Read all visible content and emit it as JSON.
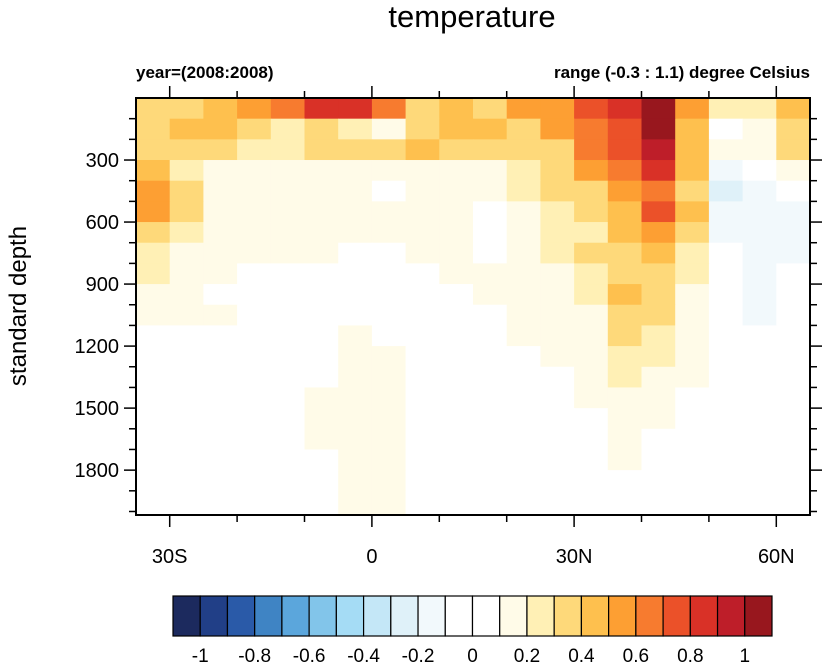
{
  "chart_data": {
    "type": "heatmap",
    "title": "temperature",
    "left_string": "year=(2008:2008)",
    "right_string": "range (-0.3 : 1.1) degree Celsius",
    "ylabel": "standard depth",
    "xlabel": "",
    "xlim": [
      -35,
      65
    ],
    "ylim": [
      0,
      2017
    ],
    "y_reversed": true,
    "x_ticks": [
      {
        "value": -30,
        "label": "30S"
      },
      {
        "value": 0,
        "label": "0"
      },
      {
        "value": 30,
        "label": "30N"
      },
      {
        "value": 60,
        "label": "60N"
      }
    ],
    "y_ticks": [
      {
        "value": 300,
        "label": "300"
      },
      {
        "value": 600,
        "label": "600"
      },
      {
        "value": 900,
        "label": "900"
      },
      {
        "value": 1200,
        "label": "1200"
      },
      {
        "value": 1500,
        "label": "1500"
      },
      {
        "value": 1800,
        "label": "1800"
      }
    ],
    "x_cell_edges": [
      -35,
      -30,
      -25,
      -20,
      -15,
      -10,
      -5,
      0,
      5,
      10,
      15,
      20,
      25,
      30,
      35,
      40,
      45,
      50,
      55,
      60,
      65
    ],
    "depth_cell_edges": [
      0,
      100,
      200,
      300,
      400,
      500,
      600,
      700,
      800,
      900,
      1000,
      1100,
      1200,
      1300,
      1400,
      1500,
      1600,
      1700,
      1800,
      1900,
      2017
    ],
    "values": [
      [
        0.3,
        0.3,
        0.4,
        0.5,
        0.6,
        0.8,
        0.8,
        0.6,
        0.3,
        0.4,
        0.3,
        0.5,
        0.5,
        0.7,
        0.8,
        1.0,
        0.5,
        0.2,
        0.2,
        0.4
      ],
      [
        0.3,
        0.4,
        0.4,
        0.3,
        0.2,
        0.3,
        0.2,
        0.1,
        0.3,
        0.4,
        0.4,
        0.3,
        0.5,
        0.6,
        0.7,
        1.0,
        0.4,
        0.0,
        0.1,
        0.3
      ],
      [
        0.3,
        0.3,
        0.3,
        0.2,
        0.2,
        0.3,
        0.3,
        0.3,
        0.4,
        0.3,
        0.3,
        0.3,
        0.3,
        0.6,
        0.7,
        0.9,
        0.4,
        0.1,
        0.1,
        0.3
      ],
      [
        0.4,
        0.2,
        0.1,
        0.1,
        0.1,
        0.1,
        0.1,
        0.1,
        0.1,
        0.1,
        0.1,
        0.2,
        0.3,
        0.5,
        0.6,
        0.8,
        0.4,
        -0.1,
        0.0,
        0.1
      ],
      [
        0.5,
        0.3,
        0.1,
        0.1,
        0.1,
        0.1,
        0.1,
        0.0,
        0.1,
        0.1,
        0.1,
        0.2,
        0.3,
        0.3,
        0.5,
        0.6,
        0.3,
        -0.2,
        -0.1,
        0.0
      ],
      [
        0.5,
        0.3,
        0.1,
        0.1,
        0.1,
        0.1,
        0.1,
        0.1,
        0.1,
        0.1,
        0.0,
        0.1,
        0.2,
        0.3,
        0.4,
        0.7,
        0.4,
        -0.1,
        -0.1,
        -0.1
      ],
      [
        0.3,
        0.2,
        0.1,
        0.1,
        0.1,
        0.1,
        0.1,
        0.1,
        0.1,
        0.1,
        0.0,
        0.1,
        0.2,
        0.2,
        0.4,
        0.5,
        0.3,
        -0.1,
        -0.1,
        -0.1
      ],
      [
        0.2,
        0.1,
        0.1,
        0.1,
        0.1,
        0.1,
        0.0,
        0.0,
        0.1,
        0.1,
        0.0,
        0.1,
        0.2,
        0.3,
        0.3,
        0.4,
        0.2,
        0.0,
        -0.1,
        -0.1
      ],
      [
        0.2,
        0.1,
        0.1,
        0.0,
        0.0,
        0.0,
        0.0,
        0.0,
        0.0,
        0.1,
        0.1,
        0.1,
        0.1,
        0.2,
        0.3,
        0.3,
        0.2,
        0.0,
        -0.1,
        0.0
      ],
      [
        0.1,
        0.1,
        0.0,
        0.0,
        0.0,
        0.0,
        0.0,
        0.0,
        0.0,
        0.0,
        0.1,
        0.1,
        0.1,
        0.2,
        0.4,
        0.3,
        0.1,
        0.0,
        -0.1,
        0.0
      ],
      [
        0.1,
        0.1,
        0.1,
        0.0,
        0.0,
        0.0,
        0.0,
        0.0,
        0.0,
        0.0,
        0.0,
        0.1,
        0.1,
        0.1,
        0.3,
        0.3,
        0.1,
        0.0,
        -0.1,
        0.0
      ],
      [
        0.0,
        0.0,
        0.0,
        0.0,
        0.0,
        0.0,
        0.1,
        0.0,
        0.0,
        0.0,
        0.0,
        0.1,
        0.1,
        0.1,
        0.3,
        0.2,
        0.1,
        0.0,
        0.0,
        0.0
      ],
      [
        0.0,
        0.0,
        0.0,
        0.0,
        0.0,
        0.0,
        0.1,
        0.1,
        0.0,
        0.0,
        0.0,
        0.0,
        0.1,
        0.1,
        0.2,
        0.2,
        0.1,
        0.0,
        0.0,
        0.0
      ],
      [
        0.0,
        0.0,
        0.0,
        0.0,
        0.0,
        0.0,
        0.1,
        0.1,
        0.0,
        0.0,
        0.0,
        0.0,
        0.0,
        0.1,
        0.2,
        0.1,
        0.1,
        0.0,
        0.0,
        0.0
      ],
      [
        0.0,
        0.0,
        0.0,
        0.0,
        0.0,
        0.1,
        0.1,
        0.1,
        0.0,
        0.0,
        0.0,
        0.0,
        0.0,
        0.1,
        0.1,
        0.1,
        0.0,
        0.0,
        0.0,
        0.0
      ],
      [
        0.0,
        0.0,
        0.0,
        0.0,
        0.0,
        0.1,
        0.1,
        0.1,
        0.0,
        0.0,
        0.0,
        0.0,
        0.0,
        0.0,
        0.1,
        0.1,
        0.0,
        0.0,
        0.0,
        0.0
      ],
      [
        0.0,
        0.0,
        0.0,
        0.0,
        0.0,
        0.1,
        0.1,
        0.1,
        0.0,
        0.0,
        0.0,
        0.0,
        0.0,
        0.0,
        0.1,
        0.0,
        0.0,
        0.0,
        0.0,
        0.0
      ],
      [
        0.0,
        0.0,
        0.0,
        0.0,
        0.0,
        0.0,
        0.1,
        0.1,
        0.0,
        0.0,
        0.0,
        0.0,
        0.0,
        0.0,
        0.1,
        0.0,
        0.0,
        0.0,
        0.0,
        0.0
      ],
      [
        0.0,
        0.0,
        0.0,
        0.0,
        0.0,
        0.0,
        0.1,
        0.1,
        0.0,
        0.0,
        0.0,
        0.0,
        0.0,
        0.0,
        0.0,
        0.0,
        0.0,
        0.0,
        0.0,
        0.0
      ],
      [
        0.0,
        0.0,
        0.0,
        0.0,
        0.0,
        0.0,
        0.1,
        0.1,
        0.0,
        0.0,
        0.0,
        0.0,
        0.0,
        0.0,
        0.0,
        0.0,
        0.0,
        0.0,
        0.0,
        0.0
      ]
    ],
    "colorbar": {
      "levels": [
        -1.0,
        -0.9,
        -0.8,
        -0.7,
        -0.6,
        -0.5,
        -0.4,
        -0.3,
        -0.2,
        -0.1,
        0.0,
        0.1,
        0.2,
        0.3,
        0.4,
        0.5,
        0.6,
        0.7,
        0.8,
        0.9,
        1.0
      ],
      "labels": [
        {
          "value": -1,
          "label": "-1"
        },
        {
          "value": -0.8,
          "label": "-0.8"
        },
        {
          "value": -0.6,
          "label": "-0.6"
        },
        {
          "value": -0.4,
          "label": "-0.4"
        },
        {
          "value": -0.2,
          "label": "-0.2"
        },
        {
          "value": 0,
          "label": "0"
        },
        {
          "value": 0.2,
          "label": "0.2"
        },
        {
          "value": 0.4,
          "label": "0.4"
        },
        {
          "value": 0.6,
          "label": "0.6"
        },
        {
          "value": 0.8,
          "label": "0.8"
        },
        {
          "value": 1,
          "label": "1"
        }
      ],
      "colors": [
        "#1c2a5e",
        "#213f87",
        "#2a5aa8",
        "#3f84c4",
        "#5ba6dc",
        "#82c5ea",
        "#a5dcf5",
        "#c4e7f7",
        "#dff1f9",
        "#f2f9fc",
        "#ffffff",
        "#ffffff",
        "#fffbe8",
        "#fff0b5",
        "#fed97a",
        "#fec04e",
        "#fd9f33",
        "#f77b2f",
        "#eb5129",
        "#d93127",
        "#be1e29",
        "#98171e"
      ]
    }
  }
}
